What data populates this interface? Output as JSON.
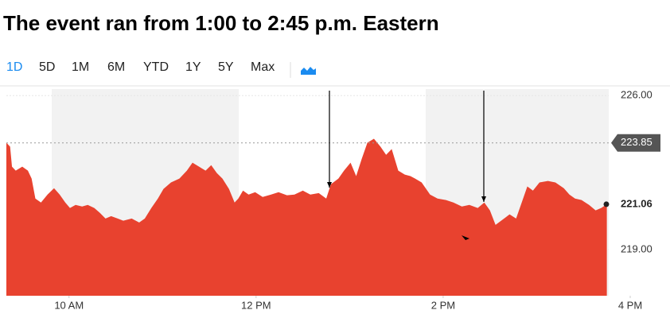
{
  "title": "The event ran from 1:00 to 2:45 p.m. Eastern",
  "range_tabs": [
    "1D",
    "5D",
    "1M",
    "6M",
    "YTD",
    "1Y",
    "5Y",
    "Max"
  ],
  "selected_tab": "1D",
  "chart_data": {
    "type": "area",
    "x": [
      9.33,
      9.37,
      9.39,
      9.43,
      9.5,
      9.56,
      9.6,
      9.64,
      9.7,
      9.77,
      9.84,
      9.9,
      9.96,
      10.01,
      10.07,
      10.14,
      10.2,
      10.27,
      10.33,
      10.39,
      10.45,
      10.52,
      10.58,
      10.67,
      10.75,
      10.81,
      10.88,
      10.95,
      11.01,
      11.09,
      11.18,
      11.26,
      11.32,
      11.39,
      11.46,
      11.52,
      11.58,
      11.64,
      11.71,
      11.77,
      11.81,
      11.86,
      11.92,
      11.99,
      12.07,
      12.16,
      12.24,
      12.33,
      12.41,
      12.5,
      12.58,
      12.67,
      12.75,
      12.8,
      12.88,
      12.94,
      13.01,
      13.07,
      13.13,
      13.19,
      13.26,
      13.33,
      13.39,
      13.45,
      13.52,
      13.59,
      13.65,
      13.7,
      13.77,
      13.86,
      13.94,
      14.03,
      14.11,
      14.2,
      14.28,
      14.37,
      14.44,
      14.5,
      14.56,
      14.62,
      14.71,
      14.78,
      14.84,
      14.9,
      14.96,
      15.03,
      15.12,
      15.2,
      15.29,
      15.35,
      15.41,
      15.48,
      15.56,
      15.63,
      15.69,
      15.75
    ],
    "values": [
      223.86,
      223.68,
      222.77,
      222.59,
      222.77,
      222.59,
      222.23,
      221.32,
      221.14,
      221.5,
      221.79,
      221.5,
      221.14,
      220.89,
      221.03,
      220.96,
      221.03,
      220.89,
      220.67,
      220.41,
      220.52,
      220.41,
      220.31,
      220.41,
      220.23,
      220.41,
      220.89,
      221.32,
      221.76,
      222.05,
      222.23,
      222.59,
      222.95,
      222.77,
      222.59,
      222.84,
      222.48,
      222.23,
      221.76,
      221.14,
      221.32,
      221.68,
      221.5,
      221.61,
      221.39,
      221.5,
      221.61,
      221.47,
      221.5,
      221.68,
      221.5,
      221.57,
      221.32,
      221.97,
      222.23,
      222.59,
      222.95,
      222.34,
      223.13,
      223.86,
      224.04,
      223.68,
      223.31,
      223.57,
      222.59,
      222.41,
      222.34,
      222.23,
      222.05,
      221.5,
      221.32,
      221.25,
      221.14,
      220.96,
      221.03,
      220.89,
      221.14,
      220.78,
      220.12,
      220.31,
      220.6,
      220.41,
      221.14,
      221.87,
      221.68,
      222.05,
      222.12,
      222.05,
      221.79,
      221.5,
      221.32,
      221.25,
      221.03,
      220.78,
      220.89,
      221.06
    ],
    "color": "#e8422f",
    "xlim": [
      9.33,
      16
    ],
    "xticks": [
      {
        "value": 10,
        "label": "10 AM"
      },
      {
        "value": 12,
        "label": "12 PM"
      },
      {
        "value": 14,
        "label": "2 PM"
      },
      {
        "value": 16,
        "label": "4 PM"
      }
    ],
    "ylim": [
      216.9,
      226.3
    ],
    "yticks": [
      {
        "value": 226,
        "label": "226.00"
      },
      {
        "value": 219,
        "label": "219.00"
      }
    ],
    "previous_close": {
      "value": 223.85,
      "label": "223.85"
    },
    "last_price": {
      "value": 221.06,
      "label": "221.06"
    }
  }
}
